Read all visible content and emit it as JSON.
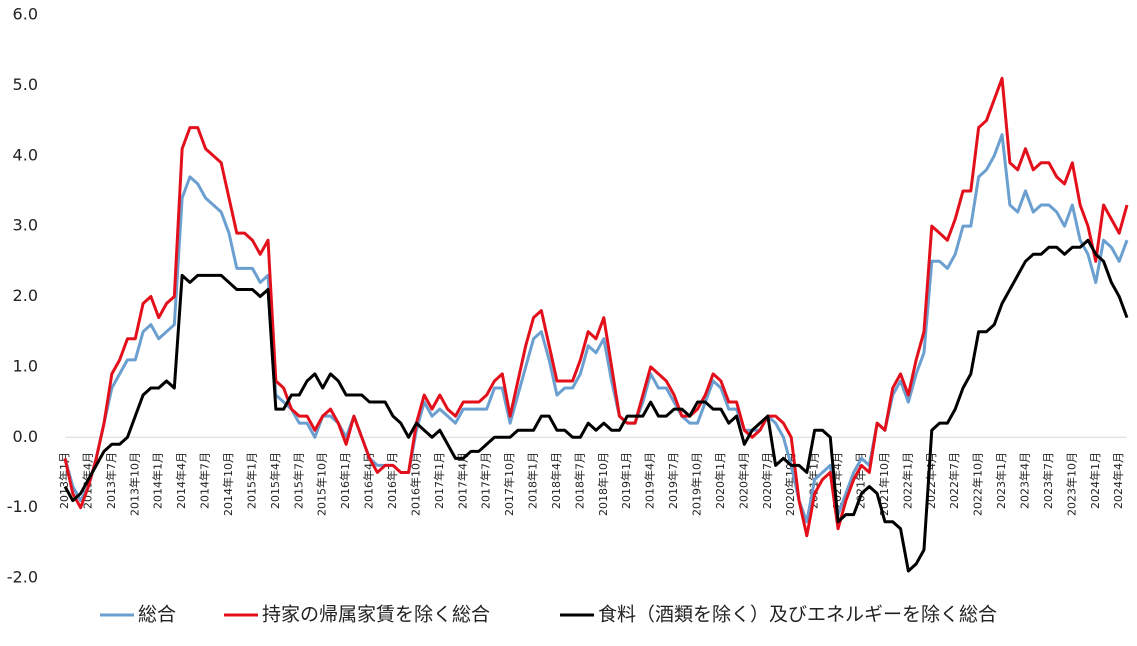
{
  "chart_data": {
    "type": "line",
    "categories": [
      "2013年1月",
      null,
      null,
      "2013年4月",
      null,
      null,
      "2013年7月",
      null,
      null,
      "2013年10月",
      null,
      null,
      "2014年1月",
      null,
      null,
      "2014年4月",
      null,
      null,
      "2014年7月",
      null,
      null,
      "2014年10月",
      null,
      null,
      "2015年1月",
      null,
      null,
      "2015年4月",
      null,
      null,
      "2015年7月",
      null,
      null,
      "2015年10月",
      null,
      null,
      "2016年1月",
      null,
      null,
      "2016年4月",
      null,
      null,
      "2016年7月",
      null,
      null,
      "2016年10月",
      null,
      null,
      "2017年1月",
      null,
      null,
      "2017年4月",
      null,
      null,
      "2017年7月",
      null,
      null,
      "2017年10月",
      null,
      null,
      "2018年1月",
      null,
      null,
      "2018年4月",
      null,
      null,
      "2018年7月",
      null,
      null,
      "2018年10月",
      null,
      null,
      "2019年1月",
      null,
      null,
      "2019年4月",
      null,
      null,
      "2019年7月",
      null,
      null,
      "2019年10月",
      null,
      null,
      "2020年1月",
      null,
      null,
      "2020年4月",
      null,
      null,
      "2020年7月",
      null,
      null,
      "2020年10月",
      null,
      null,
      "2021年1月",
      null,
      null,
      "2021年4月",
      null,
      null,
      "2021年7月",
      null,
      null,
      "2021年10月",
      null,
      null,
      "2022年1月",
      null,
      null,
      "2022年4月",
      null,
      null,
      "2022年7月",
      null,
      null,
      "2022年10月",
      null,
      null,
      "2023年1月",
      null,
      null,
      "2023年4月",
      null,
      null,
      "2023年7月",
      null,
      null,
      "2023年10月",
      null,
      null,
      "2024年1月",
      null,
      null,
      "2024年4月",
      null
    ],
    "series": [
      {
        "name": "総合",
        "color": "#6a9fd0",
        "values": [
          -0.3,
          -0.7,
          -0.9,
          -0.7,
          -0.3,
          0.2,
          0.7,
          0.9,
          1.1,
          1.1,
          1.5,
          1.6,
          1.4,
          1.5,
          1.6,
          3.4,
          3.7,
          3.6,
          3.4,
          3.3,
          3.2,
          2.9,
          2.4,
          2.4,
          2.4,
          2.2,
          2.3,
          0.6,
          0.5,
          0.4,
          0.2,
          0.2,
          0.0,
          0.3,
          0.3,
          0.2,
          0.0,
          0.3,
          0.0,
          -0.3,
          -0.4,
          -0.4,
          -0.4,
          -0.5,
          -0.5,
          0.1,
          0.5,
          0.3,
          0.4,
          0.3,
          0.2,
          0.4,
          0.4,
          0.4,
          0.4,
          0.7,
          0.7,
          0.2,
          0.6,
          1.0,
          1.4,
          1.5,
          1.1,
          0.6,
          0.7,
          0.7,
          0.9,
          1.3,
          1.2,
          1.4,
          0.8,
          0.3,
          0.2,
          0.2,
          0.5,
          0.9,
          0.7,
          0.7,
          0.5,
          0.3,
          0.2,
          0.2,
          0.5,
          0.8,
          0.7,
          0.4,
          0.4,
          0.1,
          0.1,
          0.1,
          0.3,
          0.2,
          0.0,
          -0.4,
          -0.9,
          -1.2,
          -0.6,
          -0.5,
          -0.4,
          -1.1,
          -0.8,
          -0.5,
          -0.3,
          -0.4,
          0.2,
          0.1,
          0.6,
          0.8,
          0.5,
          0.9,
          1.2,
          2.5,
          2.5,
          2.4,
          2.6,
          3.0,
          3.0,
          3.7,
          3.8,
          4.0,
          4.3,
          3.3,
          3.2,
          3.5,
          3.2,
          3.3,
          3.3,
          3.2,
          3.0,
          3.3,
          2.8,
          2.6,
          2.2,
          2.8,
          2.7,
          2.5,
          2.8
        ]
      },
      {
        "name": "持家の帰属家賃を除く総合",
        "color": "#e3101c",
        "values": [
          -0.3,
          -0.8,
          -1.0,
          -0.7,
          -0.3,
          0.2,
          0.9,
          1.1,
          1.4,
          1.4,
          1.9,
          2.0,
          1.7,
          1.9,
          2.0,
          4.1,
          4.4,
          4.4,
          4.1,
          4.0,
          3.9,
          3.4,
          2.9,
          2.9,
          2.8,
          2.6,
          2.8,
          0.8,
          0.7,
          0.4,
          0.3,
          0.3,
          0.1,
          0.3,
          0.4,
          0.2,
          -0.1,
          0.3,
          0.0,
          -0.3,
          -0.5,
          -0.4,
          -0.4,
          -0.5,
          -0.5,
          0.2,
          0.6,
          0.4,
          0.6,
          0.4,
          0.3,
          0.5,
          0.5,
          0.5,
          0.6,
          0.8,
          0.9,
          0.3,
          0.8,
          1.3,
          1.7,
          1.8,
          1.3,
          0.8,
          0.8,
          0.8,
          1.1,
          1.5,
          1.4,
          1.7,
          1.0,
          0.3,
          0.2,
          0.2,
          0.6,
          1.0,
          0.9,
          0.8,
          0.6,
          0.3,
          0.3,
          0.4,
          0.6,
          0.9,
          0.8,
          0.5,
          0.5,
          0.1,
          0.0,
          0.1,
          0.3,
          0.3,
          0.2,
          0.0,
          -0.9,
          -1.4,
          -0.8,
          -0.6,
          -0.5,
          -1.3,
          -0.9,
          -0.6,
          -0.4,
          -0.5,
          0.2,
          0.1,
          0.7,
          0.9,
          0.6,
          1.1,
          1.5,
          3.0,
          2.9,
          2.8,
          3.1,
          3.5,
          3.5,
          4.4,
          4.5,
          4.8,
          5.1,
          3.9,
          3.8,
          4.1,
          3.8,
          3.9,
          3.9,
          3.7,
          3.6,
          3.9,
          3.3,
          3.0,
          2.5,
          3.3,
          3.1,
          2.9,
          3.3
        ]
      },
      {
        "name": "食料（酒類を除く）及びエネルギーを除く総合",
        "color": "#000000",
        "values": [
          -0.7,
          -0.9,
          -0.8,
          -0.6,
          -0.4,
          -0.2,
          -0.1,
          -0.1,
          0.0,
          0.3,
          0.6,
          0.7,
          0.7,
          0.8,
          0.7,
          2.3,
          2.2,
          2.3,
          2.3,
          2.3,
          2.3,
          2.2,
          2.1,
          2.1,
          2.1,
          2.0,
          2.1,
          0.4,
          0.4,
          0.6,
          0.6,
          0.8,
          0.9,
          0.7,
          0.9,
          0.8,
          0.6,
          0.6,
          0.6,
          0.5,
          0.5,
          0.5,
          0.3,
          0.2,
          0.0,
          0.2,
          0.1,
          0.0,
          0.1,
          -0.1,
          -0.3,
          -0.3,
          -0.2,
          -0.2,
          -0.1,
          0.0,
          0.0,
          0.0,
          0.1,
          0.1,
          0.1,
          0.3,
          0.3,
          0.1,
          0.1,
          0.0,
          0.0,
          0.2,
          0.1,
          0.2,
          0.1,
          0.1,
          0.3,
          0.3,
          0.3,
          0.5,
          0.3,
          0.3,
          0.4,
          0.4,
          0.3,
          0.5,
          0.5,
          0.4,
          0.4,
          0.2,
          0.3,
          -0.1,
          0.1,
          0.2,
          0.3,
          -0.4,
          -0.3,
          -0.4,
          -0.4,
          -0.5,
          0.1,
          0.1,
          0.0,
          -1.2,
          -1.1,
          -1.1,
          -0.8,
          -0.7,
          -0.8,
          -1.2,
          -1.2,
          -1.3,
          -1.9,
          -1.8,
          -1.6,
          0.1,
          0.2,
          0.2,
          0.4,
          0.7,
          0.9,
          1.5,
          1.5,
          1.6,
          1.9,
          2.1,
          2.3,
          2.5,
          2.6,
          2.6,
          2.7,
          2.7,
          2.6,
          2.7,
          2.7,
          2.8,
          2.6,
          2.5,
          2.2,
          2.0,
          1.7
        ]
      }
    ],
    "ylim": [
      -2,
      6
    ],
    "yticks": [
      {
        "value": -2,
        "label": "-2.0"
      },
      {
        "value": -1,
        "label": "-1.0"
      },
      {
        "value": 0,
        "label": "0.0"
      },
      {
        "value": 1,
        "label": "1.0"
      },
      {
        "value": 2,
        "label": "2.0"
      },
      {
        "value": 3,
        "label": "3.0"
      },
      {
        "value": 4,
        "label": "4.0"
      },
      {
        "value": 5,
        "label": "5.0"
      },
      {
        "value": 6,
        "label": "6.0"
      }
    ],
    "grid": false,
    "legend": "bottom"
  }
}
